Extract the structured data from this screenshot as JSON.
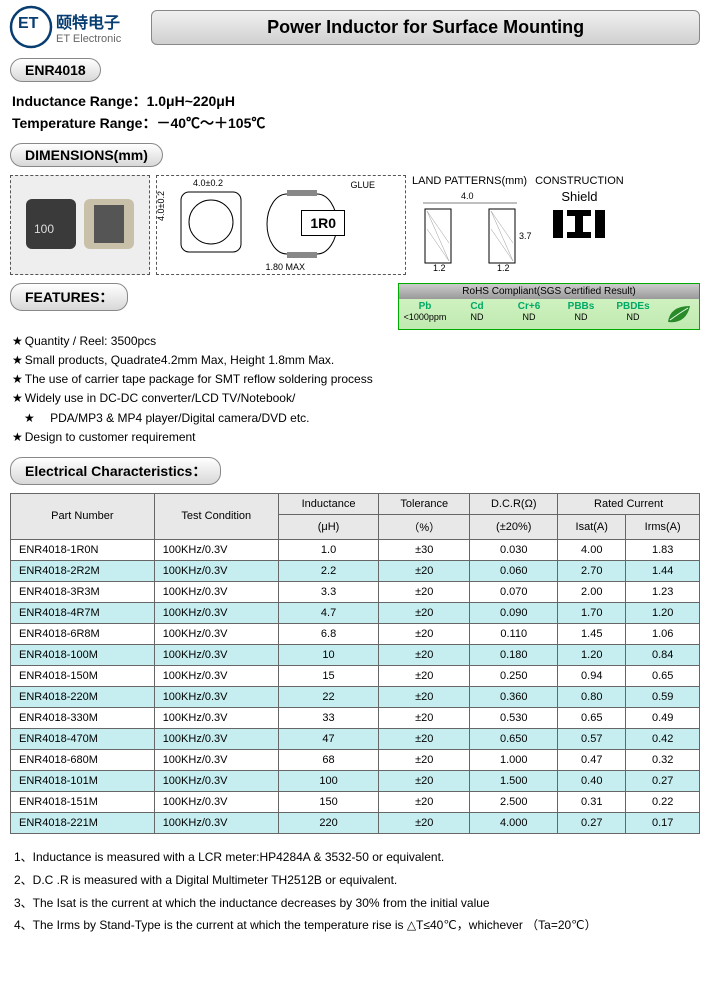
{
  "logo": {
    "cn": "颐特电子",
    "en": "ET Electronic"
  },
  "title": "Power Inductor for Surface Mounting",
  "part_series": "ENR4018",
  "specs": {
    "inductance_range_label": "Inductance Range：",
    "inductance_range_value": "1.0μH~220μH",
    "temp_range_label": "Temperature Range：",
    "temp_range_value": "－40℃～＋105℃"
  },
  "dimensions_heading": "DIMENSIONS(mm)",
  "drawing": {
    "width_label": "4.0±0.2",
    "height_label": "4.0±0.2",
    "depth_label": "1.80 MAX",
    "glue_label": "GLUE",
    "mark": "1R0"
  },
  "land": {
    "title": "LAND PATTERNS(mm)",
    "w_overall": "4.0",
    "pad_w": "1.2",
    "pad_h": "3.7"
  },
  "construction": {
    "title": "CONSTRUCTION",
    "type": "Shield"
  },
  "features_heading": "FEATURES：",
  "rohs": {
    "head": "RoHS Compliant(SGS Certified Result)",
    "items": [
      {
        "name": "Pb",
        "val": "<1000ppm"
      },
      {
        "name": "Cd",
        "val": "ND"
      },
      {
        "name": "Cr+6",
        "val": "ND"
      },
      {
        "name": "PBBs",
        "val": "ND"
      },
      {
        "name": "PBDEs",
        "val": "ND"
      }
    ]
  },
  "features": [
    "Quantity / Reel: 3500pcs",
    "Small products, Quadrate4.2mm Max, Height 1.8mm Max.",
    "The use of carrier tape package for SMT reflow soldering process",
    "Widely use in DC-DC converter/LCD TV/Notebook/",
    "Design to customer requirement"
  ],
  "features_sub": "   PDA/MP3 & MP4 player/Digital camera/DVD etc.",
  "ec_heading": "Electrical Characteristics：",
  "table": {
    "head_top": [
      "Part Number",
      "Test Condition",
      "Inductance",
      "Tolerance",
      "D.C.R(Ω)",
      "Rated Current"
    ],
    "head_bot": [
      "(μH)",
      "（%）",
      "(±20%)",
      "Isat(A)",
      "Irms(A)"
    ],
    "rows": [
      [
        "ENR4018-1R0N",
        "100KHz/0.3V",
        "1.0",
        "±30",
        "0.030",
        "4.00",
        "1.83"
      ],
      [
        "ENR4018-2R2M",
        "100KHz/0.3V",
        "2.2",
        "±20",
        "0.060",
        "2.70",
        "1.44"
      ],
      [
        "ENR4018-3R3M",
        "100KHz/0.3V",
        "3.3",
        "±20",
        "0.070",
        "2.00",
        "1.23"
      ],
      [
        "ENR4018-4R7M",
        "100KHz/0.3V",
        "4.7",
        "±20",
        "0.090",
        "1.70",
        "1.20"
      ],
      [
        "ENR4018-6R8M",
        "100KHz/0.3V",
        "6.8",
        "±20",
        "0.110",
        "1.45",
        "1.06"
      ],
      [
        "ENR4018-100M",
        "100KHz/0.3V",
        "10",
        "±20",
        "0.180",
        "1.20",
        "0.84"
      ],
      [
        "ENR4018-150M",
        "100KHz/0.3V",
        "15",
        "±20",
        "0.250",
        "0.94",
        "0.65"
      ],
      [
        "ENR4018-220M",
        "100KHz/0.3V",
        "22",
        "±20",
        "0.360",
        "0.80",
        "0.59"
      ],
      [
        "ENR4018-330M",
        "100KHz/0.3V",
        "33",
        "±20",
        "0.530",
        "0.65",
        "0.49"
      ],
      [
        "ENR4018-470M",
        "100KHz/0.3V",
        "47",
        "±20",
        "0.650",
        "0.57",
        "0.42"
      ],
      [
        "ENR4018-680M",
        "100KHz/0.3V",
        "68",
        "±20",
        "1.000",
        "0.47",
        "0.32"
      ],
      [
        "ENR4018-101M",
        "100KHz/0.3V",
        "100",
        "±20",
        "1.500",
        "0.40",
        "0.27"
      ],
      [
        "ENR4018-151M",
        "100KHz/0.3V",
        "150",
        "±20",
        "2.500",
        "0.31",
        "0.22"
      ],
      [
        "ENR4018-221M",
        "100KHz/0.3V",
        "220",
        "±20",
        "4.000",
        "0.27",
        "0.17"
      ]
    ],
    "alt_color": "#c6eef0"
  },
  "notes": [
    "1、Inductance is measured with a LCR meter:HP4284A & 3532-50 or equivalent.",
    "2、D.C .R is measured with a Digital Multimeter TH2512B or equivalent.",
    "3、The Isat is the current at which the inductance decreases by 30% from the initial value",
    "4、The Irms by Stand-Type is the current at which the temperature rise is △T≤40℃，whichever （Ta=20℃）"
  ],
  "colors": {
    "accent": "#073d71",
    "table_border": "#666",
    "row_alt": "#c6eef0",
    "header_bg": "#e8e8e8"
  }
}
